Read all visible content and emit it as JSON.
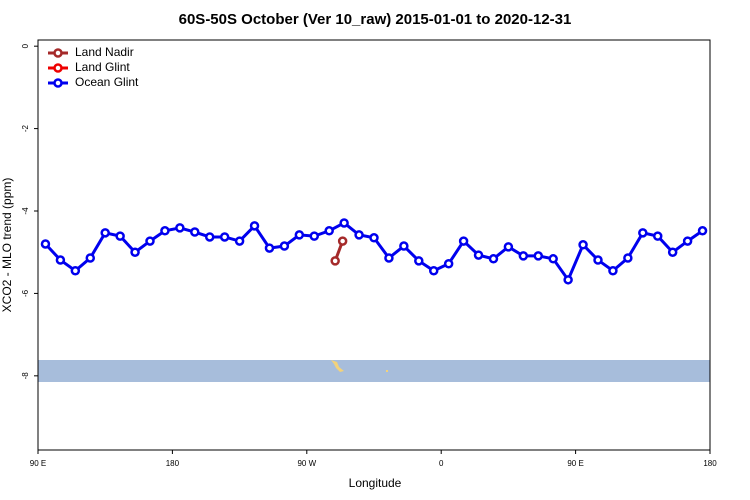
{
  "chart_data": {
    "type": "line",
    "title": "60S-50S October (Ver 10_raw)   2015-01-01 to 2020-12-31",
    "xlabel": "Longitude",
    "ylabel": "XCO2 - MLO trend (ppm)",
    "xlim": [
      90,
      540
    ],
    "ylim": [
      -9.8,
      0.15
    ],
    "xticks": [
      {
        "value": 90,
        "label": "90 E"
      },
      180,
      {
        "value": 270,
        "label": "90 W"
      },
      {
        "value": 360,
        "label": "0"
      },
      {
        "value": 450,
        "label": "90 E"
      },
      {
        "value": 540,
        "label": "180"
      }
    ],
    "yticks": [
      0,
      -2,
      -4,
      -6,
      -8
    ],
    "legend": "top-left",
    "series": [
      {
        "name": "Land Nadir",
        "color": "#a52a2a",
        "x": [
          289,
          294
        ],
        "values": [
          -5.21,
          -4.73
        ]
      },
      {
        "name": "Land Glint",
        "color": "#ee0000",
        "x": [],
        "values": []
      },
      {
        "name": "Ocean Glint",
        "color": "#0000ee",
        "x": [
          95,
          105,
          115,
          125,
          135,
          145,
          155,
          165,
          175,
          185,
          195,
          205,
          215,
          225,
          235,
          245,
          255,
          265,
          275,
          285,
          295,
          305,
          315,
          325,
          335,
          345,
          355,
          365,
          375,
          385,
          395,
          405,
          415,
          425,
          435,
          445,
          455,
          465,
          475,
          485,
          495,
          505,
          515,
          525,
          535
        ],
        "values": [
          -4.8,
          -5.19,
          -5.45,
          -5.14,
          -4.53,
          -4.61,
          -5.0,
          -4.73,
          -4.48,
          -4.41,
          -4.51,
          -4.63,
          -4.63,
          -4.73,
          -4.36,
          -4.9,
          -4.85,
          -4.58,
          -4.61,
          -4.48,
          -4.29,
          -4.58,
          -4.65,
          -5.14,
          -4.85,
          -5.21,
          -5.45,
          -5.28,
          -4.73,
          -5.07,
          -5.16,
          -4.87,
          -5.09,
          -5.09,
          -5.16,
          -5.67,
          -4.82,
          -5.19,
          -5.45,
          -5.14,
          -4.53,
          -4.61,
          -5.0,
          -4.73,
          -4.48
        ]
      }
    ]
  }
}
